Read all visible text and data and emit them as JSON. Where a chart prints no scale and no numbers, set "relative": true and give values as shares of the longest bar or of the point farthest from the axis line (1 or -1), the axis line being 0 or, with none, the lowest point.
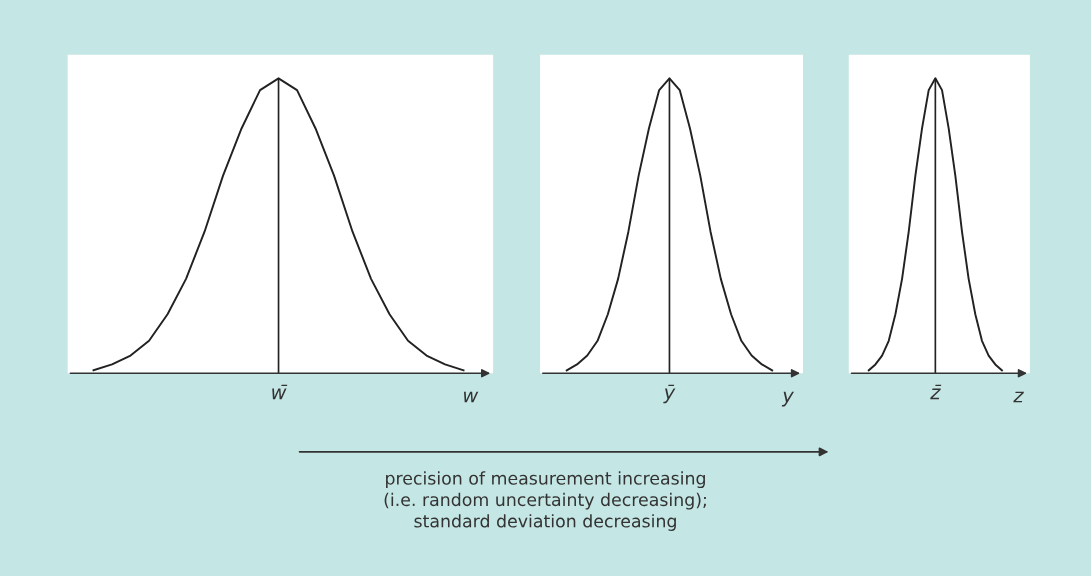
{
  "chart_data": [
    {
      "type": "line",
      "relative": true,
      "xlabel": "w",
      "categories": [
        null,
        null,
        null,
        null,
        null,
        null,
        null,
        null,
        null,
        null,
        null,
        null,
        null,
        null,
        null,
        null,
        null,
        null,
        null,
        null,
        null
      ],
      "series": [
        {
          "color": "#222222",
          "values": [
            0.01,
            0.03,
            0.06,
            0.11,
            0.2,
            0.32,
            0.48,
            0.67,
            0.83,
            0.96,
            1,
            0.96,
            0.83,
            0.67,
            0.48,
            0.32,
            0.2,
            0.11,
            0.06,
            0.03,
            0.01
          ]
        }
      ],
      "annotations": [
        "w̄",
        "precision of measurement increasing\n(i.e. random uncertainty decreasing);\nstandard deviation decreasing"
      ]
    },
    {
      "type": "line",
      "relative": true,
      "xlabel": "y",
      "categories": [
        null,
        null,
        null,
        null,
        null,
        null,
        null,
        null,
        null,
        null,
        null,
        null,
        null,
        null,
        null,
        null,
        null,
        null,
        null,
        null,
        null
      ],
      "series": [
        {
          "color": "#222222",
          "values": [
            0.01,
            0.03,
            0.06,
            0.11,
            0.2,
            0.32,
            0.48,
            0.67,
            0.83,
            0.96,
            1,
            0.96,
            0.83,
            0.67,
            0.48,
            0.32,
            0.2,
            0.11,
            0.06,
            0.03,
            0.01
          ]
        }
      ],
      "annotations": [
        "ȳ"
      ]
    },
    {
      "type": "line",
      "relative": true,
      "xlabel": "z",
      "categories": [
        null,
        null,
        null,
        null,
        null,
        null,
        null,
        null,
        null,
        null,
        null,
        null,
        null,
        null,
        null,
        null,
        null,
        null,
        null,
        null,
        null
      ],
      "series": [
        {
          "color": "#222222",
          "values": [
            0.01,
            0.03,
            0.06,
            0.11,
            0.2,
            0.32,
            0.48,
            0.67,
            0.83,
            0.96,
            1,
            0.96,
            0.83,
            0.67,
            0.48,
            0.32,
            0.2,
            0.11,
            0.06,
            0.03,
            0.01
          ]
        }
      ],
      "annotations": [
        "z̄"
      ]
    }
  ]
}
